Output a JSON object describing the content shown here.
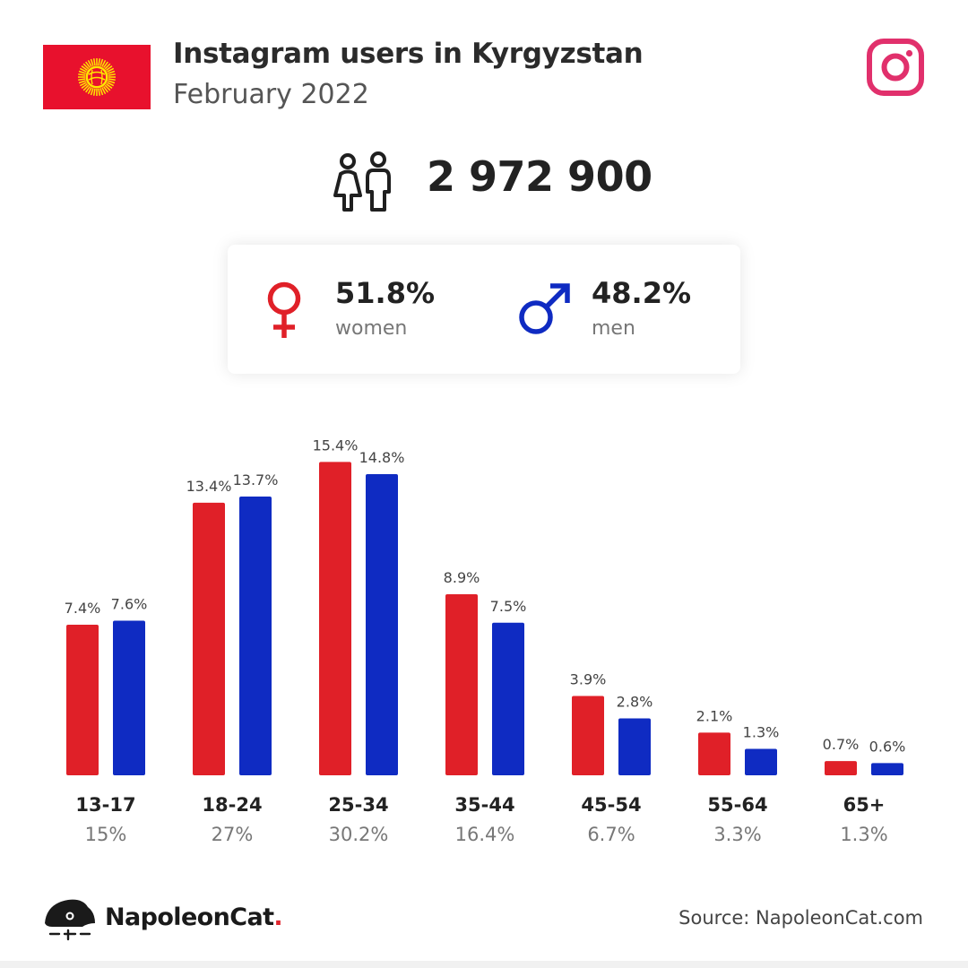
{
  "header": {
    "title": "Instagram users in Kyrgyzstan",
    "subtitle": "February 2022"
  },
  "total_users": "2 972 900",
  "gender": {
    "women_pct": "51.8%",
    "women_label": "women",
    "men_pct": "48.2%",
    "men_label": "men"
  },
  "footer": {
    "brand": "NapoleonCat",
    "brand_dot": ".",
    "source": "Source: NapoleonCat.com"
  },
  "icons": {
    "flag": "kyrgyzstan-flag-icon",
    "platform": "instagram-icon",
    "users": "users-icon",
    "female": "female-symbol-icon",
    "male": "male-symbol-icon",
    "logo": "napoleoncat-logo-icon"
  },
  "colors": {
    "women": "#e02028",
    "men": "#0f2bc2",
    "flag_red": "#e8112d",
    "flag_sun": "#ffe600",
    "instagram": "#e1306c",
    "brand_dot": "#e0262e"
  },
  "chart_data": {
    "type": "bar",
    "categories": [
      "13-17",
      "18-24",
      "25-34",
      "35-44",
      "45-54",
      "55-64",
      "65+"
    ],
    "series": [
      {
        "name": "women",
        "values": [
          7.4,
          13.4,
          15.4,
          8.9,
          3.9,
          2.1,
          0.7
        ]
      },
      {
        "name": "men",
        "values": [
          7.6,
          13.7,
          14.8,
          7.5,
          2.8,
          1.3,
          0.6
        ]
      }
    ],
    "value_labels": {
      "women": [
        "7.4%",
        "13.4%",
        "15.4%",
        "8.9%",
        "3.9%",
        "2.1%",
        "0.7%"
      ],
      "men": [
        "7.6%",
        "13.7%",
        "14.8%",
        "7.5%",
        "2.8%",
        "1.3%",
        "0.6%"
      ]
    },
    "category_totals": [
      "15%",
      "27%",
      "30.2%",
      "16.4%",
      "6.7%",
      "3.3%",
      "1.3%"
    ],
    "unit": "%",
    "grid": false,
    "legend": "none"
  }
}
